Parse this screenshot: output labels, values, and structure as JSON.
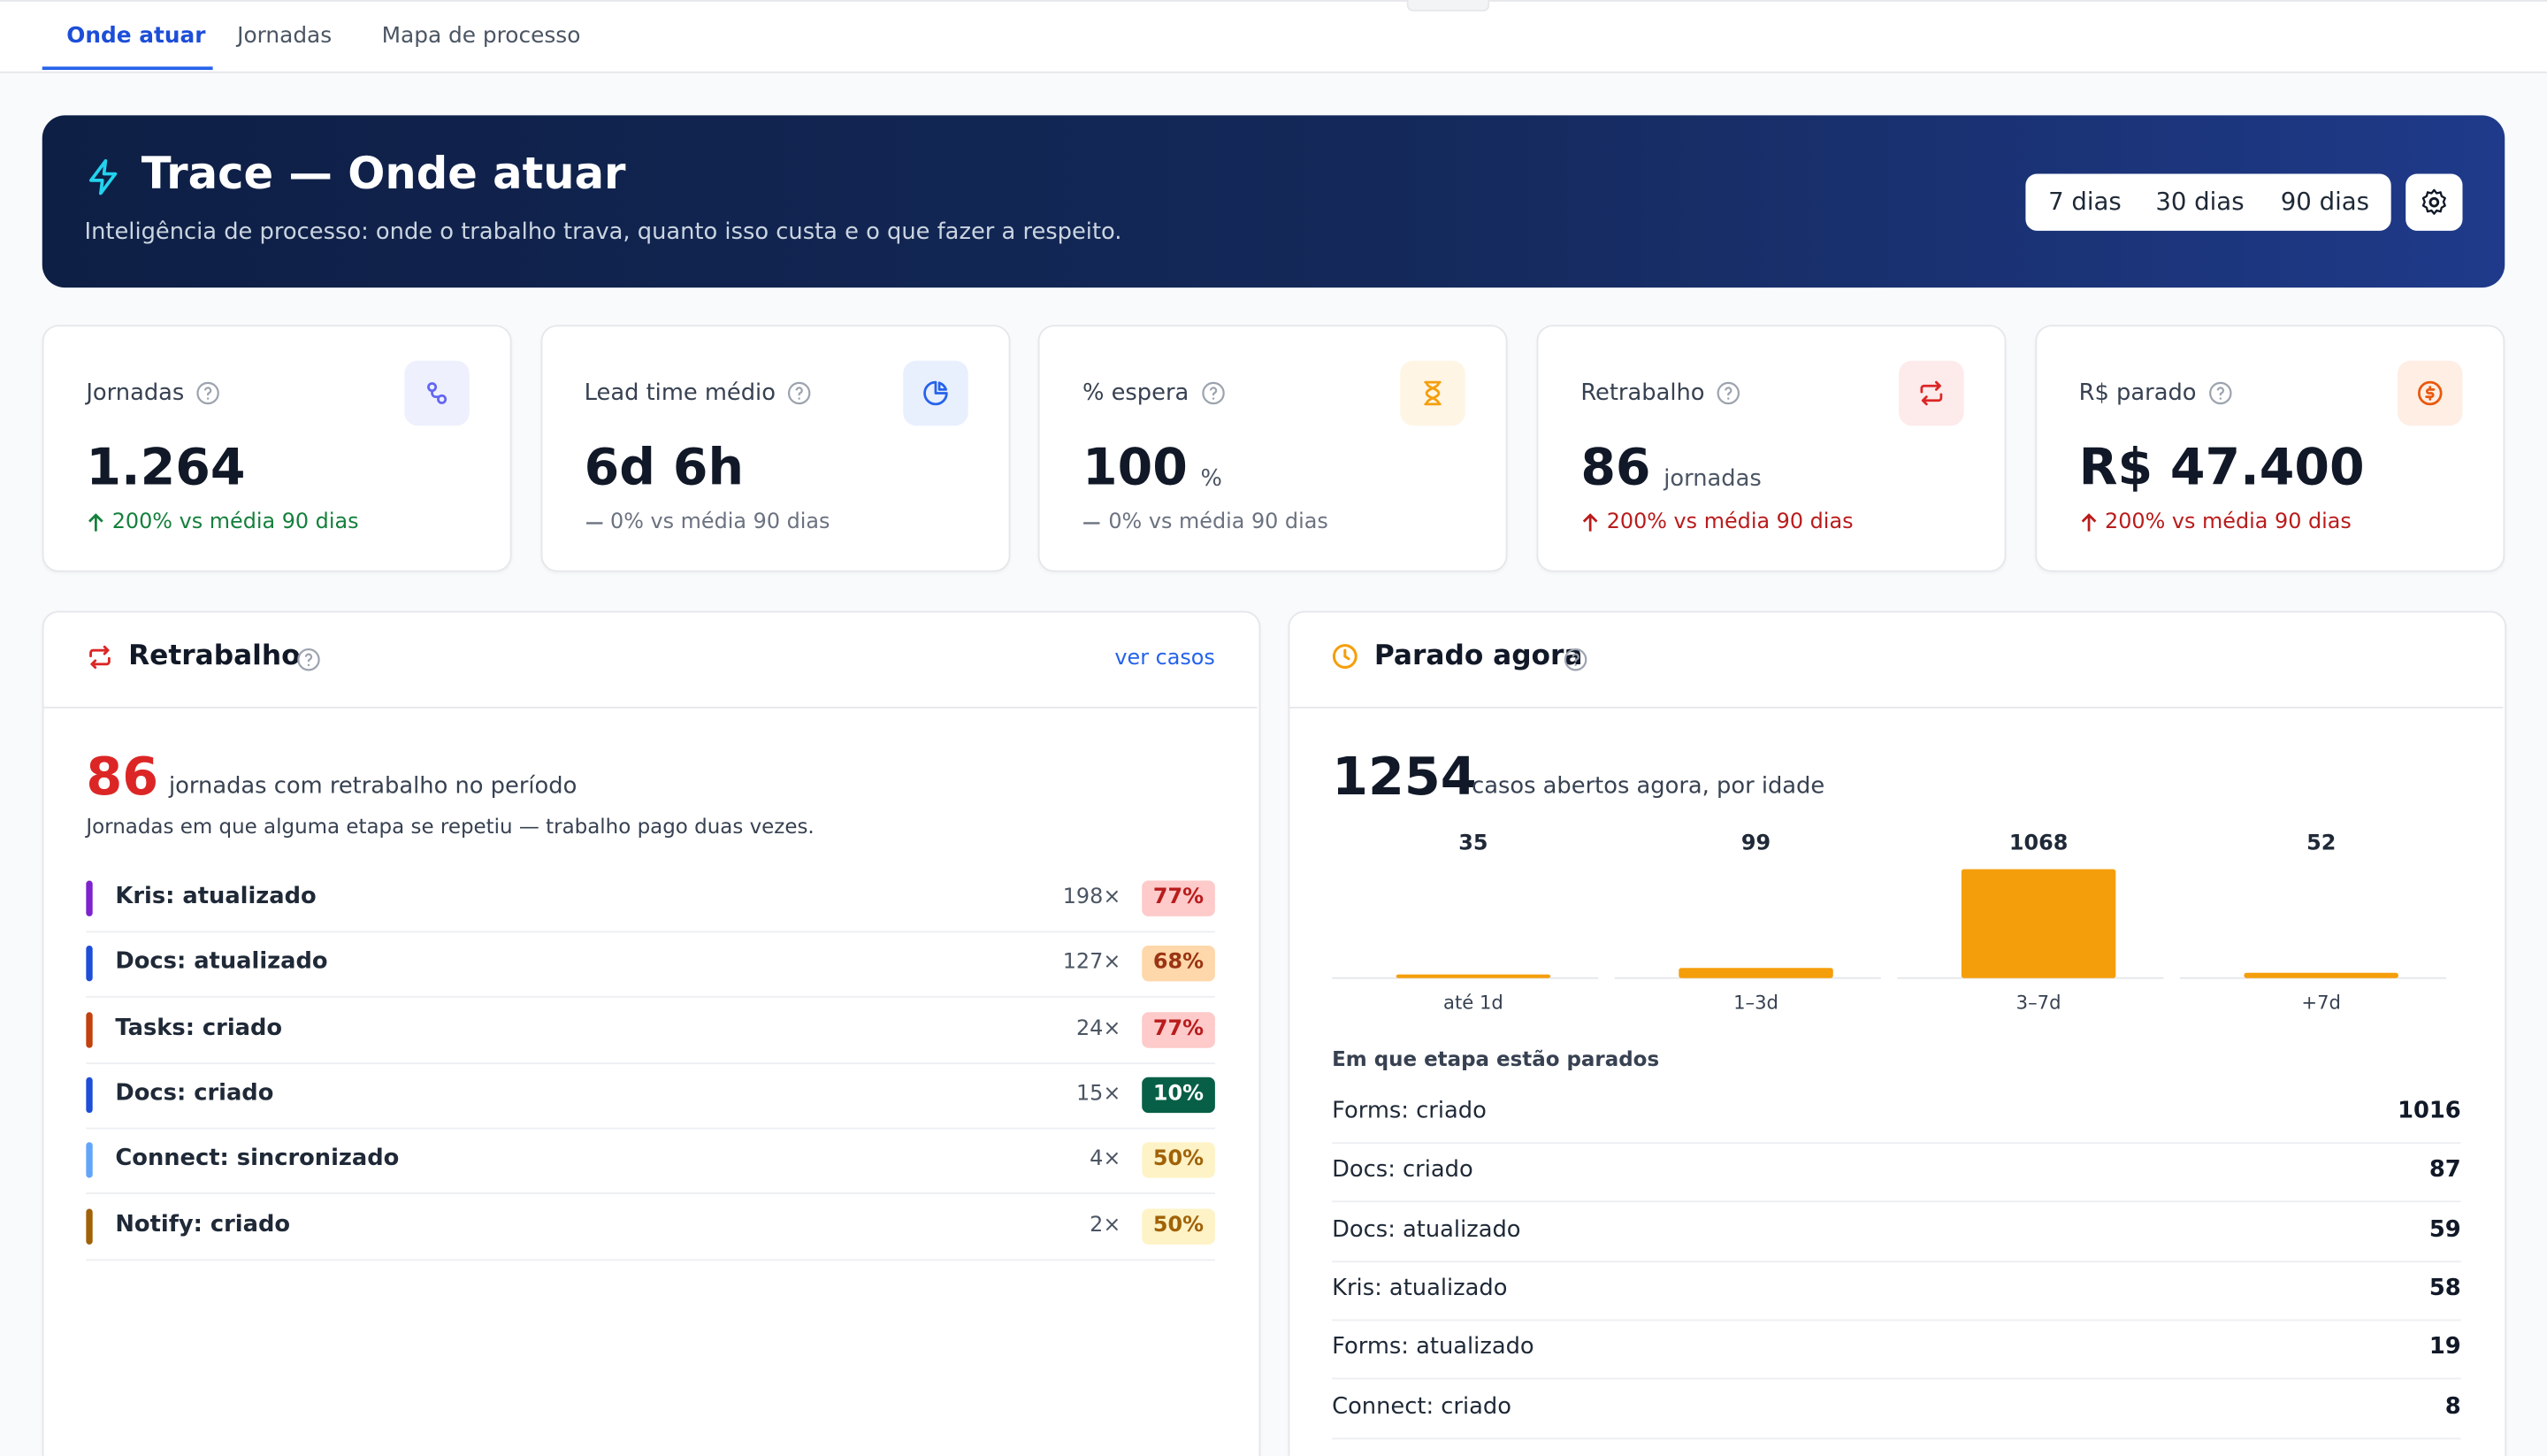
{
  "tabs": [
    "Onde atuar",
    "Jornadas",
    "Mapa de processo"
  ],
  "active_tab": 0,
  "header": {
    "title": "Trace — Onde atuar",
    "subtitle": "Inteligência de processo: onde o trabalho trava, quanto isso custa e o que fazer a respeito.",
    "periods": [
      "7 dias",
      "30 dias",
      "90 dias"
    ]
  },
  "kpis": [
    {
      "label": "Jornadas",
      "value": "1.264",
      "delta": "200% vs média 90 dias",
      "trend": "up",
      "delta_color": "#15803d",
      "icon_bg": "#eef0fd",
      "icon_color": "#6366f1"
    },
    {
      "label": "Lead time médio",
      "value": "6d 6h",
      "delta": "0% vs média 90 dias",
      "trend": "flat",
      "delta_color": "#6b7280",
      "icon_bg": "#e8effd",
      "icon_color": "#2563eb"
    },
    {
      "label": "% espera",
      "value": "100",
      "unit": "%",
      "delta": "0% vs média 90 dias",
      "trend": "flat",
      "delta_color": "#6b7280",
      "icon_bg": "#fef5e4",
      "icon_color": "#f59e0b"
    },
    {
      "label": "Retrabalho",
      "value": "86",
      "unit": "jornadas",
      "delta": "200% vs média 90 dias",
      "trend": "up",
      "delta_color": "#b91c1c",
      "icon_bg": "#fdeaea",
      "icon_color": "#dc2626"
    },
    {
      "label": "R$ parado",
      "value": "R$ 47.400",
      "delta": "200% vs média 90 dias",
      "trend": "up",
      "delta_color": "#b91c1c",
      "icon_bg": "#feeee4",
      "icon_color": "#ea580c"
    }
  ],
  "rework": {
    "title": "Retrabalho",
    "link": "ver casos",
    "count": "86",
    "count_text": "jornadas com retrabalho no período",
    "note": "Jornadas em que alguma etapa se repetiu — trabalho pago duas vezes.",
    "rows": [
      {
        "label": "Kris: atualizado",
        "color": "#7e22ce",
        "count": "198×",
        "share": "77%",
        "badge_bg": "#fecaca",
        "badge_fg": "#b91c1c"
      },
      {
        "label": "Docs: atualizado",
        "color": "#1d4ed8",
        "count": "127×",
        "share": "68%",
        "badge_bg": "#fed7aa",
        "badge_fg": "#9a3412"
      },
      {
        "label": "Tasks: criado",
        "color": "#c2410c",
        "count": "24×",
        "share": "77%",
        "badge_bg": "#fecaca",
        "badge_fg": "#b91c1c"
      },
      {
        "label": "Docs: criado",
        "color": "#1d4ed8",
        "count": "15×",
        "share": "10%",
        "badge_bg": "#065f46",
        "badge_fg": "#ffffff"
      },
      {
        "label": "Connect: sincronizado",
        "color": "#60a5fa",
        "count": "4×",
        "share": "50%",
        "badge_bg": "#fef3c7",
        "badge_fg": "#a16207"
      },
      {
        "label": "Notify: criado",
        "color": "#a16207",
        "count": "2×",
        "share": "50%",
        "badge_bg": "#fef3c7",
        "badge_fg": "#a16207"
      }
    ]
  },
  "stalled": {
    "title": "Parado agora",
    "count": "1254",
    "count_text": "casos abertos agora, por idade",
    "stages_title": "Em que etapa estão parados",
    "stages": [
      {
        "label": "Forms: criado",
        "value": 1016
      },
      {
        "label": "Docs: criado",
        "value": 87
      },
      {
        "label": "Docs: atualizado",
        "value": 59
      },
      {
        "label": "Kris: atualizado",
        "value": 58
      },
      {
        "label": "Forms: atualizado",
        "value": 19
      },
      {
        "label": "Connect: criado",
        "value": 8
      }
    ]
  },
  "chart_data": {
    "type": "bar",
    "categories": [
      "até 1d",
      "1–3d",
      "3–7d",
      "+7d"
    ],
    "values": [
      35,
      99,
      1068,
      52
    ],
    "color": "#f59e0b"
  }
}
